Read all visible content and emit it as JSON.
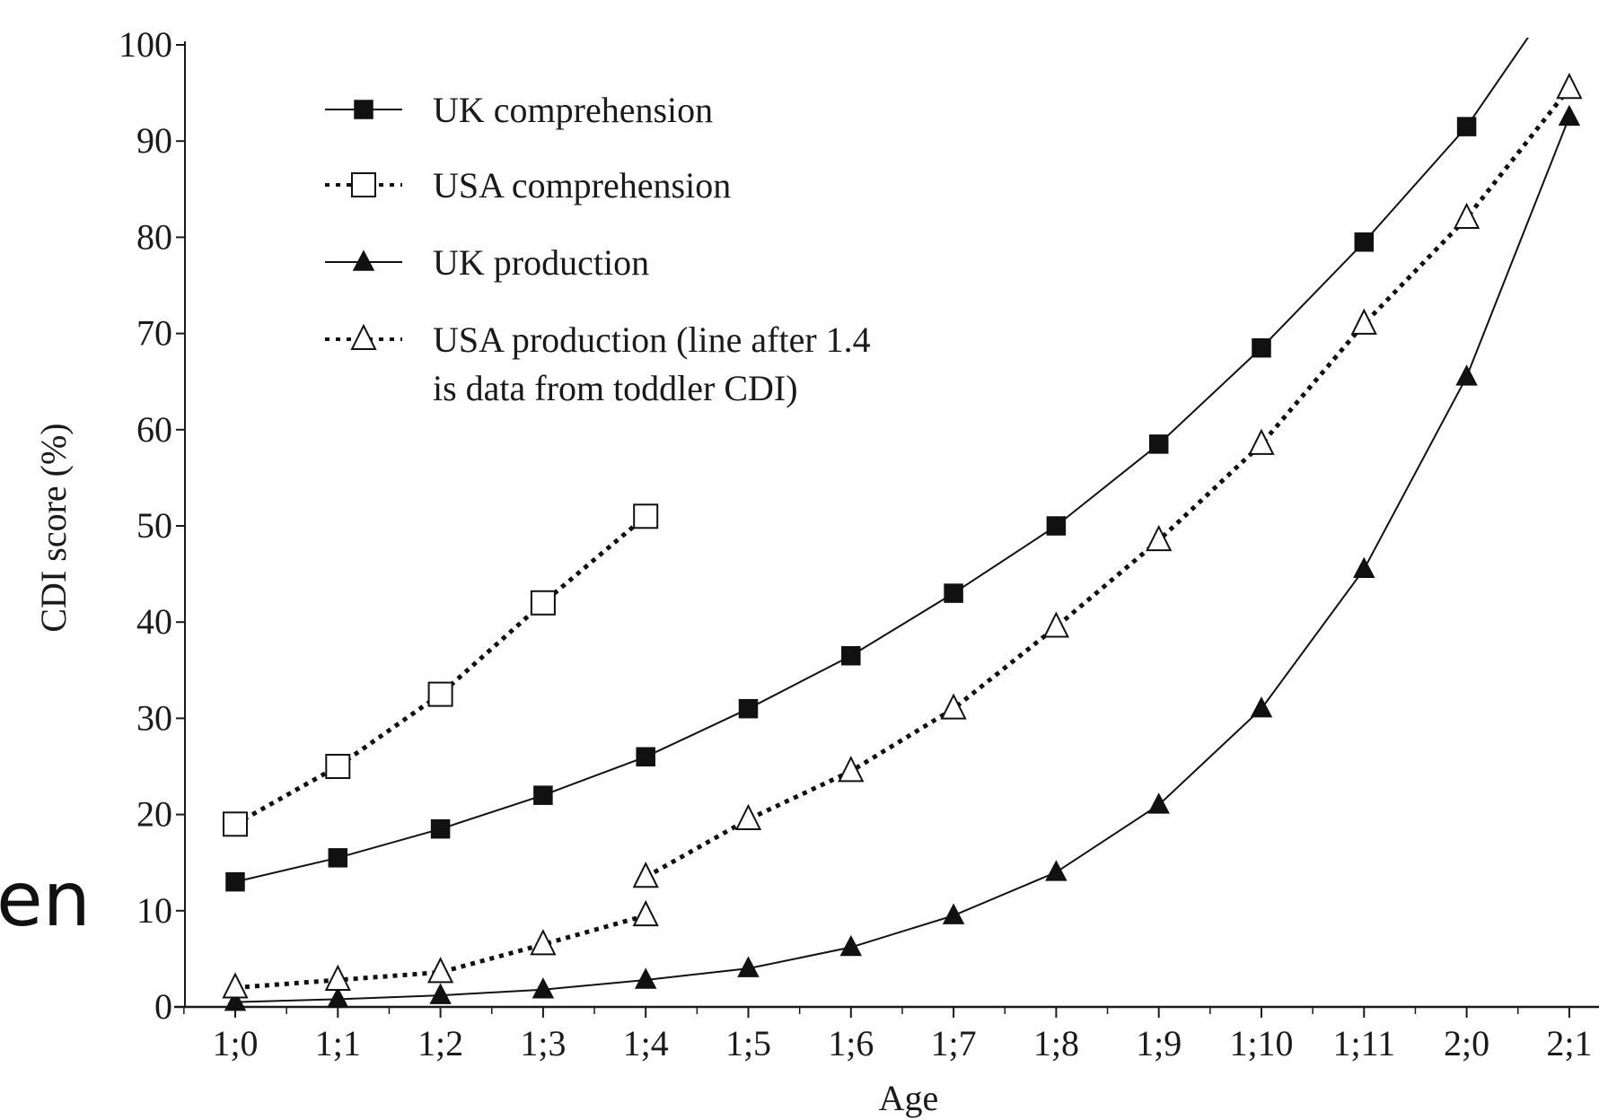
{
  "slide_fragment": "en",
  "chart_data": {
    "type": "line",
    "xlabel": "Age",
    "ylabel": "CDI score (%)",
    "ylim": [
      0,
      100
    ],
    "yticks": [
      0,
      10,
      20,
      30,
      40,
      50,
      60,
      70,
      80,
      90,
      100
    ],
    "categories": [
      "1;0",
      "1;1",
      "1;2",
      "1;3",
      "1;4",
      "1;5",
      "1;6",
      "1;7",
      "1;8",
      "1;9",
      "1;10",
      "1;11",
      "2;0",
      "2;1"
    ],
    "legend_position": "top-left",
    "series": [
      {
        "name": "UK comprehension",
        "marker": "filled-square",
        "line": "solid",
        "segments": [
          {
            "x": [
              "1;0",
              "1;1",
              "1;2",
              "1;3",
              "1;4",
              "1;5",
              "1;6",
              "1;7",
              "1;8",
              "1;9",
              "1;10",
              "1;11",
              "2;0",
              "2;1"
            ],
            "y": [
              13,
              15.5,
              18.5,
              22,
              26,
              31,
              36.5,
              43,
              50,
              58.5,
              68.5,
              79.5,
              91.5,
              107
            ],
            "marker_count": 13
          }
        ]
      },
      {
        "name": "USA comprehension",
        "marker": "open-square",
        "line": "dotted",
        "segments": [
          {
            "x": [
              "1;0",
              "1;1",
              "1;2",
              "1;3",
              "1;4"
            ],
            "y": [
              19,
              25,
              32.5,
              42,
              51
            ],
            "marker_count": 5
          }
        ]
      },
      {
        "name": "UK production",
        "marker": "filled-triangle",
        "line": "solid",
        "segments": [
          {
            "x": [
              "1;0",
              "1;1",
              "1;2",
              "1;3",
              "1;4",
              "1;5",
              "1;6",
              "1;7",
              "1;8",
              "1;9",
              "1;10",
              "1;11",
              "2;0",
              "2;1"
            ],
            "y": [
              0.5,
              0.8,
              1.2,
              1.8,
              2.8,
              4,
              6.2,
              9.5,
              14,
              21,
              31,
              45.5,
              65.5,
              92.5
            ],
            "marker_count": 14
          }
        ]
      },
      {
        "name": "USA production (line after 1.4\nis data from toddler CDI)",
        "marker": "open-triangle",
        "line": "dotted",
        "segments": [
          {
            "x": [
              "1;0",
              "1;1",
              "1;2",
              "1;3",
              "1;4"
            ],
            "y": [
              2,
              2.8,
              3.6,
              6.5,
              9.5
            ],
            "marker_count": 5
          },
          {
            "x": [
              "1;4",
              "1;5",
              "1;6",
              "1;7",
              "1;8",
              "1;9",
              "1;10",
              "1;11",
              "2;0",
              "2;1"
            ],
            "y": [
              13.5,
              19.5,
              24.5,
              31,
              39.5,
              48.5,
              58.5,
              71,
              82,
              95.5
            ],
            "marker_count": 10
          }
        ]
      }
    ]
  }
}
